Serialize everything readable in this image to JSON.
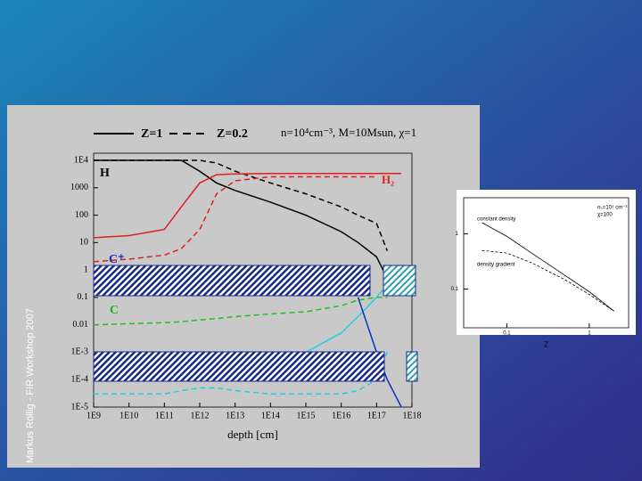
{
  "side_text": "Markus Röllig - FIR Workshop 2007",
  "chart_data": [
    {
      "type": "line",
      "xscale": "log",
      "yscale": "log",
      "xlabel": "depth [cm]",
      "legend_solid": "Z=1",
      "legend_dashed": "Z=0.2",
      "parameters": "n=10⁴cm⁻³, M=10Msun, χ=1",
      "annotations": [
        "H",
        "H₂",
        "C⁺",
        "C"
      ],
      "xlim": [
        1000000000.0,
        1e+18
      ],
      "ylim": [
        1e-05,
        10000
      ],
      "xticks": [
        {
          "value": 1000000000.0,
          "label": "1E9"
        },
        {
          "value": 10000000000.0,
          "label": "1E10"
        },
        {
          "value": 100000000000.0,
          "label": "1E11"
        },
        {
          "value": 1000000000000.0,
          "label": "1E12"
        },
        {
          "value": 10000000000000.0,
          "label": "1E13"
        },
        {
          "value": 100000000000000.0,
          "label": "1E14"
        },
        {
          "value": 1000000000000000.0,
          "label": "1E15"
        },
        {
          "value": 1e+16,
          "label": "1E16"
        },
        {
          "value": 1e+17,
          "label": "1E17"
        },
        {
          "value": 1e+18,
          "label": "1E18"
        }
      ],
      "yticks": [
        {
          "value": 10000,
          "label": "1E4"
        },
        1000,
        100,
        10,
        1,
        0.1,
        0.01,
        {
          "value": 0.001,
          "label": "1E-3"
        },
        {
          "value": 0.0001,
          "label": "1E-4"
        },
        {
          "value": 1e-05,
          "label": "1E-5"
        }
      ],
      "x": [
        1000000000.0,
        10000000000.0,
        100000000000.0,
        300000000000.0,
        1000000000000.0,
        3000000000000.0,
        10000000000000.0,
        100000000000000.0,
        1000000000000000.0,
        1e+16,
        3e+16,
        1e+17,
        2e+17,
        5e+17
      ],
      "series": [
        {
          "color": "#000000",
          "dash": false,
          "values": [
            10000,
            10000,
            10000,
            10000,
            4000,
            1500,
            800,
            300,
            100,
            25,
            10,
            3,
            0.5,
            null
          ]
        },
        {
          "color": "#000000",
          "dash": true,
          "values": [
            10000,
            10000,
            10000,
            10000,
            10000,
            8000,
            4000,
            1500,
            600,
            200,
            100,
            50,
            5,
            null
          ]
        },
        {
          "color": "#e02020",
          "dash": false,
          "values": [
            15,
            18,
            30,
            200,
            1500,
            3000,
            3200,
            3300,
            3300,
            3300,
            3300,
            3300,
            3300,
            3300
          ]
        },
        {
          "color": "#e02020",
          "dash": true,
          "values": [
            2,
            2.5,
            3.5,
            6,
            30,
            600,
            1800,
            2500,
            2500,
            2500,
            2500,
            2500,
            null,
            null
          ]
        },
        {
          "color": "#20c020",
          "dash": true,
          "values": [
            0.01,
            0.011,
            0.012,
            0.013,
            0.015,
            0.017,
            0.02,
            0.025,
            0.03,
            0.05,
            0.08,
            0.1,
            0.1,
            null
          ]
        },
        {
          "color": "#20d0e0",
          "dash": true,
          "values": [
            3e-05,
            3e-05,
            3e-05,
            4e-05,
            5e-05,
            5e-05,
            4e-05,
            3e-05,
            3e-05,
            3e-05,
            4e-05,
            0.0001,
            0.001,
            null
          ]
        },
        {
          "color": "#20d0e0",
          "dash": false,
          "values": [
            null,
            null,
            null,
            null,
            null,
            null,
            null,
            null,
            0.001,
            0.005,
            0.02,
            0.1,
            0.3,
            null
          ]
        },
        {
          "color": "#1030c0",
          "dash": false,
          "values": [
            null,
            null,
            null,
            null,
            null,
            null,
            null,
            null,
            null,
            null,
            0.1,
            0.001,
            0.0001,
            1e-05
          ]
        }
      ]
    },
    {
      "type": "line",
      "xscale": "log",
      "yscale": "log",
      "xlabel": "Z",
      "annotations": [
        "constant density",
        "density gradient",
        "n₀=10⁴ cm⁻³",
        "χ=100"
      ],
      "xlim": [
        0.03,
        3
      ],
      "ylim": [
        0.02,
        4.5
      ],
      "xticks": [
        0.1,
        1
      ],
      "yticks": [
        1,
        0.1
      ],
      "x": [
        0.05,
        0.1,
        0.2,
        0.5,
        1,
        2
      ],
      "series": [
        {
          "color": "#000000",
          "dash": false,
          "values": [
            1.6,
            0.9,
            0.45,
            0.18,
            0.09,
            0.04
          ]
        },
        {
          "color": "#000000",
          "dash": true,
          "values": [
            0.5,
            0.45,
            0.3,
            0.15,
            0.08,
            0.04
          ]
        }
      ]
    }
  ]
}
